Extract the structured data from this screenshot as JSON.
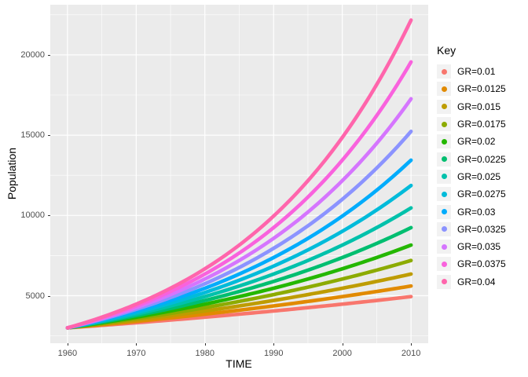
{
  "figure": {
    "background": "#FFFFFF",
    "panel_background": "#EBEBEB",
    "gridline_color": "#FFFFFF",
    "tick_mark_color": "#333333",
    "tick_label_color": "#4D4D4D",
    "axis_title_color": "#000000",
    "legend_key_background": "#F2F2F2"
  },
  "axes": {
    "x": {
      "title": "TIME",
      "tick_labels": [
        "1960",
        "1970",
        "1980",
        "1990",
        "2000",
        "2010"
      ],
      "tick_values": [
        1960,
        1970,
        1980,
        1990,
        2000,
        2010
      ],
      "minor_values": [
        1965,
        1975,
        1985,
        1995,
        2005
      ]
    },
    "y": {
      "title": "Population",
      "tick_labels": [
        "5000",
        "10000",
        "15000",
        "20000"
      ],
      "tick_values": [
        5000,
        10000,
        15000,
        20000
      ],
      "minor_values": [
        2500,
        7500,
        12500,
        17500,
        22500
      ]
    }
  },
  "legend": {
    "title": "Key",
    "position": "right",
    "entries": [
      {
        "label": "GR=0.01",
        "color": "#F8766D"
      },
      {
        "label": "GR=0.0125",
        "color": "#E18A00"
      },
      {
        "label": "GR=0.015",
        "color": "#BE9C00"
      },
      {
        "label": "GR=0.0175",
        "color": "#8CAB00"
      },
      {
        "label": "GR=0.02",
        "color": "#24B700"
      },
      {
        "label": "GR=0.0225",
        "color": "#00BE70"
      },
      {
        "label": "GR=0.025",
        "color": "#00C1AB"
      },
      {
        "label": "GR=0.0275",
        "color": "#00BBDA"
      },
      {
        "label": "GR=0.03",
        "color": "#00ACFC"
      },
      {
        "label": "GR=0.0325",
        "color": "#8B93FF"
      },
      {
        "label": "GR=0.035",
        "color": "#D575FE"
      },
      {
        "label": "GR=0.0375",
        "color": "#F962DD"
      },
      {
        "label": "GR=0.04",
        "color": "#FF65AC"
      }
    ]
  },
  "chart_data": {
    "type": "line",
    "title": "",
    "xlabel": "TIME",
    "ylabel": "Population",
    "legend_title": "Key",
    "legend_position": "right",
    "grid": true,
    "model": "Population = 3000 * exp(GR * (year - 1960))",
    "initial_population": 3000,
    "x_start": 1960,
    "x_end": 2010,
    "xlim": [
      1957.5,
      2012.5
    ],
    "ylim": [
      2041.6,
      23125.6
    ],
    "x": [
      1960,
      1970,
      1980,
      1990,
      2000,
      2010
    ],
    "series": [
      {
        "name": "GR=0.01",
        "growth_rate": 0.01,
        "color": "#F8766D",
        "values": [
          3000,
          3316,
          3664,
          4050,
          4476,
          4946
        ]
      },
      {
        "name": "GR=0.0125",
        "growth_rate": 0.0125,
        "color": "#E18A00",
        "values": [
          3000,
          3399,
          3852,
          4365,
          4946,
          5605
        ]
      },
      {
        "name": "GR=0.015",
        "growth_rate": 0.015,
        "color": "#BE9C00",
        "values": [
          3000,
          3486,
          4050,
          4705,
          5466,
          6351
        ]
      },
      {
        "name": "GR=0.0175",
        "growth_rate": 0.0175,
        "color": "#8CAB00",
        "values": [
          3000,
          3574,
          4257,
          5071,
          6041,
          7197
        ]
      },
      {
        "name": "GR=0.02",
        "growth_rate": 0.02,
        "color": "#24B700",
        "values": [
          3000,
          3664,
          4476,
          5466,
          6677,
          8155
        ]
      },
      {
        "name": "GR=0.0225",
        "growth_rate": 0.0225,
        "color": "#00BE70",
        "values": [
          3000,
          3757,
          4705,
          5892,
          7379,
          9241
        ]
      },
      {
        "name": "GR=0.025",
        "growth_rate": 0.025,
        "color": "#00C1AB",
        "values": [
          3000,
          3852,
          4946,
          6351,
          8155,
          10471
        ]
      },
      {
        "name": "GR=0.0275",
        "growth_rate": 0.0275,
        "color": "#00BBDA",
        "values": [
          3000,
          3950,
          5200,
          6846,
          9013,
          11865
        ]
      },
      {
        "name": "GR=0.03",
        "growth_rate": 0.03,
        "color": "#00ACFC",
        "values": [
          3000,
          4050,
          5466,
          7379,
          9960,
          13445
        ]
      },
      {
        "name": "GR=0.0325",
        "growth_rate": 0.0325,
        "color": "#8B93FF",
        "values": [
          3000,
          4152,
          5747,
          7954,
          11008,
          15235
        ]
      },
      {
        "name": "GR=0.035",
        "growth_rate": 0.035,
        "color": "#D575FE",
        "values": [
          3000,
          4257,
          6041,
          8573,
          12166,
          17264
        ]
      },
      {
        "name": "GR=0.0375",
        "growth_rate": 0.0375,
        "color": "#F962DD",
        "values": [
          3000,
          4365,
          6351,
          9241,
          13445,
          19562
        ]
      },
      {
        "name": "GR=0.04",
        "growth_rate": 0.04,
        "color": "#FF65AC",
        "values": [
          3000,
          4476,
          6677,
          9960,
          14859,
          22167
        ]
      }
    ]
  }
}
